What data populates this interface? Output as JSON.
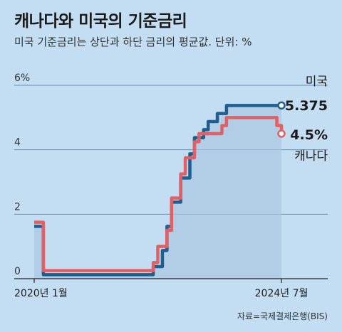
{
  "title": "캐나다와 미국의 기준금리",
  "subtitle": "미국 기준금리는 상단과 하단 금리의 평균값. 단위: %",
  "source": "자료=국제결제은행(BIS)",
  "chart_data": {
    "type": "line",
    "unit": "%",
    "x_labels": [
      "2020년 1월",
      "2024년 7월"
    ],
    "x_range": [
      "2020-01",
      "2024-07"
    ],
    "ylim": [
      0,
      6
    ],
    "y_ticks": [
      "0",
      "2",
      "4",
      "6%"
    ],
    "grid": true,
    "series": [
      {
        "name": "미국",
        "color": "#1f5f8f",
        "end_label": "5.375",
        "points": [
          [
            "2020-01",
            1.625
          ],
          [
            "2020-02",
            1.625
          ],
          [
            "2020-03",
            0.125
          ],
          [
            "2022-02",
            0.125
          ],
          [
            "2022-03",
            0.375
          ],
          [
            "2022-04",
            0.375
          ],
          [
            "2022-05",
            0.875
          ],
          [
            "2022-06",
            1.625
          ],
          [
            "2022-07",
            2.375
          ],
          [
            "2022-08",
            2.375
          ],
          [
            "2022-09",
            3.125
          ],
          [
            "2022-10",
            3.125
          ],
          [
            "2022-11",
            3.875
          ],
          [
            "2022-12",
            4.375
          ],
          [
            "2023-01",
            4.375
          ],
          [
            "2023-02",
            4.625
          ],
          [
            "2023-03",
            4.875
          ],
          [
            "2023-04",
            4.875
          ],
          [
            "2023-05",
            5.125
          ],
          [
            "2023-06",
            5.125
          ],
          [
            "2023-07",
            5.375
          ],
          [
            "2024-07",
            5.375
          ]
        ]
      },
      {
        "name": "캐나다",
        "color": "#e26063",
        "end_label": "4.5%",
        "points": [
          [
            "2020-01",
            1.75
          ],
          [
            "2020-02",
            1.75
          ],
          [
            "2020-03",
            0.25
          ],
          [
            "2022-02",
            0.25
          ],
          [
            "2022-03",
            0.5
          ],
          [
            "2022-04",
            1.0
          ],
          [
            "2022-05",
            1.0
          ],
          [
            "2022-06",
            1.5
          ],
          [
            "2022-07",
            2.5
          ],
          [
            "2022-08",
            2.5
          ],
          [
            "2022-09",
            3.25
          ],
          [
            "2022-10",
            3.75
          ],
          [
            "2022-11",
            3.75
          ],
          [
            "2022-12",
            4.25
          ],
          [
            "2023-01",
            4.5
          ],
          [
            "2023-05",
            4.5
          ],
          [
            "2023-06",
            4.75
          ],
          [
            "2023-07",
            5.0
          ],
          [
            "2024-05",
            5.0
          ],
          [
            "2024-06",
            4.75
          ],
          [
            "2024-07",
            4.5
          ]
        ]
      }
    ]
  }
}
